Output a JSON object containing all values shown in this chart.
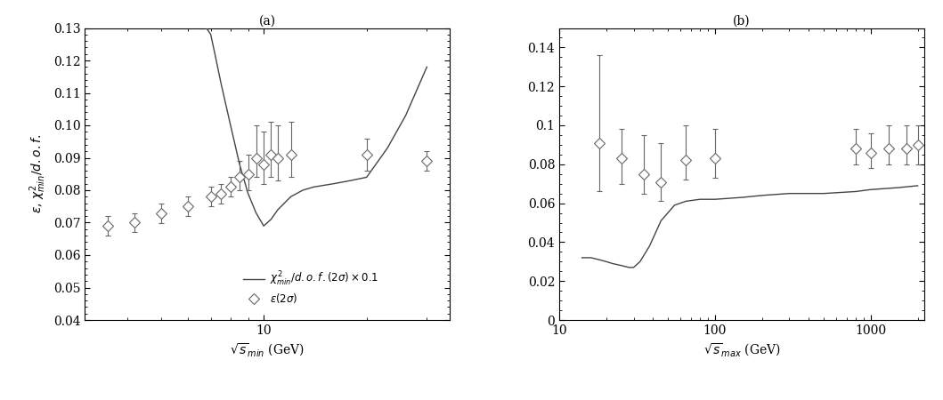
{
  "panel_a": {
    "title": "(a)",
    "xlabel": "$\\sqrt{s}_{min}$ (GeV)",
    "ylabel": "$\\epsilon$, $\\chi^2_{min}/d.o.f.$",
    "xlim": [
      3.0,
      35
    ],
    "ylim": [
      0.04,
      0.13
    ],
    "yticks": [
      0.04,
      0.05,
      0.06,
      0.07,
      0.08,
      0.09,
      0.1,
      0.11,
      0.12,
      0.13
    ],
    "line_x": [
      6.8,
      7.0,
      7.2,
      7.5,
      8.0,
      8.5,
      9.0,
      9.5,
      10.0,
      10.5,
      11.0,
      12.0,
      13.0,
      14.0,
      16.0,
      18.0,
      20.0,
      23.0,
      26.0,
      30.0
    ],
    "line_y": [
      0.13,
      0.128,
      0.122,
      0.113,
      0.1,
      0.088,
      0.079,
      0.073,
      0.069,
      0.071,
      0.074,
      0.078,
      0.08,
      0.081,
      0.082,
      0.083,
      0.084,
      0.093,
      0.103,
      0.118
    ],
    "points_x": [
      3.5,
      4.2,
      5.0,
      6.0,
      7.0,
      7.5,
      8.0,
      8.5,
      9.0,
      9.5,
      10.0,
      10.5,
      11.0,
      12.0,
      20.0,
      30.0
    ],
    "points_y": [
      0.069,
      0.07,
      0.073,
      0.075,
      0.078,
      0.079,
      0.081,
      0.084,
      0.085,
      0.09,
      0.088,
      0.091,
      0.09,
      0.091,
      0.091,
      0.089
    ],
    "points_yerr_lo": [
      0.003,
      0.003,
      0.003,
      0.003,
      0.003,
      0.003,
      0.003,
      0.004,
      0.005,
      0.006,
      0.006,
      0.007,
      0.007,
      0.007,
      0.005,
      0.003
    ],
    "points_yerr_hi": [
      0.003,
      0.003,
      0.003,
      0.003,
      0.003,
      0.003,
      0.003,
      0.005,
      0.006,
      0.01,
      0.01,
      0.01,
      0.01,
      0.01,
      0.005,
      0.003
    ],
    "legend_line": "$\\chi^2_{min}/d.o.f.(2\\sigma) \\times 0.1$",
    "legend_points": "$\\epsilon(2\\sigma)$"
  },
  "panel_b": {
    "title": "(b)",
    "xlabel": "$\\sqrt{s}_{max}$ (GeV)",
    "xlim": [
      10,
      2200
    ],
    "ylim": [
      0.0,
      0.15
    ],
    "yticks": [
      0.0,
      0.02,
      0.04,
      0.06,
      0.08,
      0.1,
      0.12,
      0.14
    ],
    "line_x": [
      14,
      16,
      18,
      20,
      22,
      25,
      28,
      30,
      33,
      38,
      45,
      55,
      65,
      80,
      100,
      150,
      200,
      300,
      500,
      800,
      1000,
      1500,
      2000
    ],
    "line_y": [
      0.032,
      0.032,
      0.031,
      0.03,
      0.029,
      0.028,
      0.027,
      0.027,
      0.03,
      0.038,
      0.051,
      0.059,
      0.061,
      0.062,
      0.062,
      0.063,
      0.064,
      0.065,
      0.065,
      0.066,
      0.067,
      0.068,
      0.069
    ],
    "points_x": [
      18,
      25,
      35,
      45,
      65,
      100,
      800,
      1000,
      1300,
      1700,
      2000
    ],
    "points_y": [
      0.091,
      0.083,
      0.075,
      0.071,
      0.082,
      0.083,
      0.088,
      0.086,
      0.088,
      0.088,
      0.09
    ],
    "points_yerr_lo": [
      0.025,
      0.013,
      0.01,
      0.01,
      0.01,
      0.01,
      0.008,
      0.008,
      0.008,
      0.008,
      0.01
    ],
    "points_yerr_hi": [
      0.045,
      0.015,
      0.02,
      0.02,
      0.018,
      0.015,
      0.01,
      0.01,
      0.012,
      0.012,
      0.01
    ]
  }
}
